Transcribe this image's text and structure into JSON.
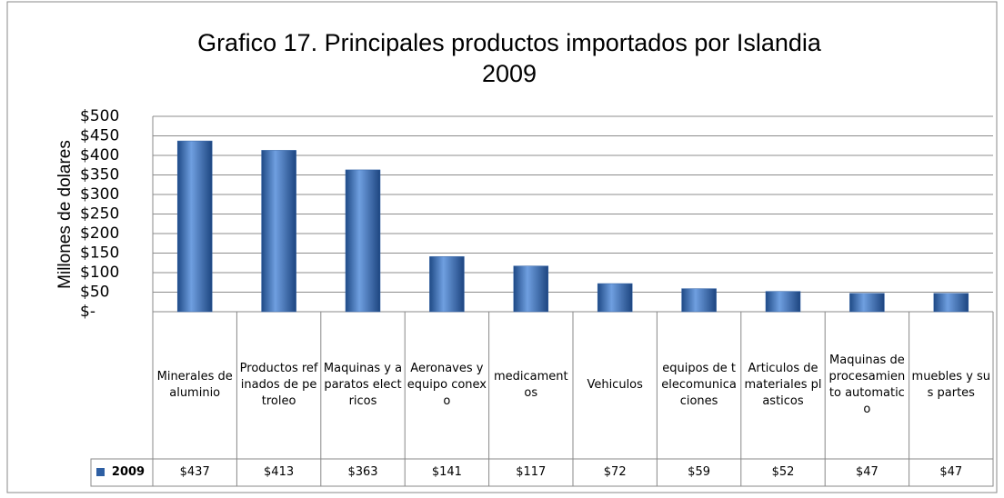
{
  "chart_data": {
    "type": "bar",
    "title": "Grafico 17. Principales productos importados por Islandia\n2009",
    "y_label": "Millones de dolares",
    "categories": [
      "Minerales de aluminio",
      "Productos refinados de petroleo",
      "Maquinas y aparatos electricos",
      "Aeronaves y equipo conexo",
      "medicamentos",
      "Vehiculos",
      "equipos de telecomunicaciones",
      "Articulos de materiales plasticos",
      "Maquinas de procesamiento automatico",
      "muebles y sus partes"
    ],
    "series": [
      {
        "name": "2009",
        "color": "#2e5fa3",
        "values": [
          437,
          413,
          363,
          141,
          117,
          72,
          59,
          52,
          47,
          47
        ],
        "value_labels": [
          "$437",
          "$413",
          "$363",
          "$141",
          "$117",
          "$72",
          "$59",
          "$52",
          "$47",
          "$47"
        ]
      }
    ],
    "ylim": [
      0,
      500
    ],
    "yticks": [
      {
        "value": 0,
        "label": "$-"
      },
      {
        "value": 50,
        "label": "$50"
      },
      {
        "value": 100,
        "label": "$100"
      },
      {
        "value": 150,
        "label": "$150"
      },
      {
        "value": 200,
        "label": "$200"
      },
      {
        "value": 250,
        "label": "$250"
      },
      {
        "value": 300,
        "label": "$300"
      },
      {
        "value": 350,
        "label": "$350"
      },
      {
        "value": 400,
        "label": "$400"
      },
      {
        "value": 450,
        "label": "$450"
      },
      {
        "value": 500,
        "label": "$500"
      }
    ],
    "grid": true
  }
}
